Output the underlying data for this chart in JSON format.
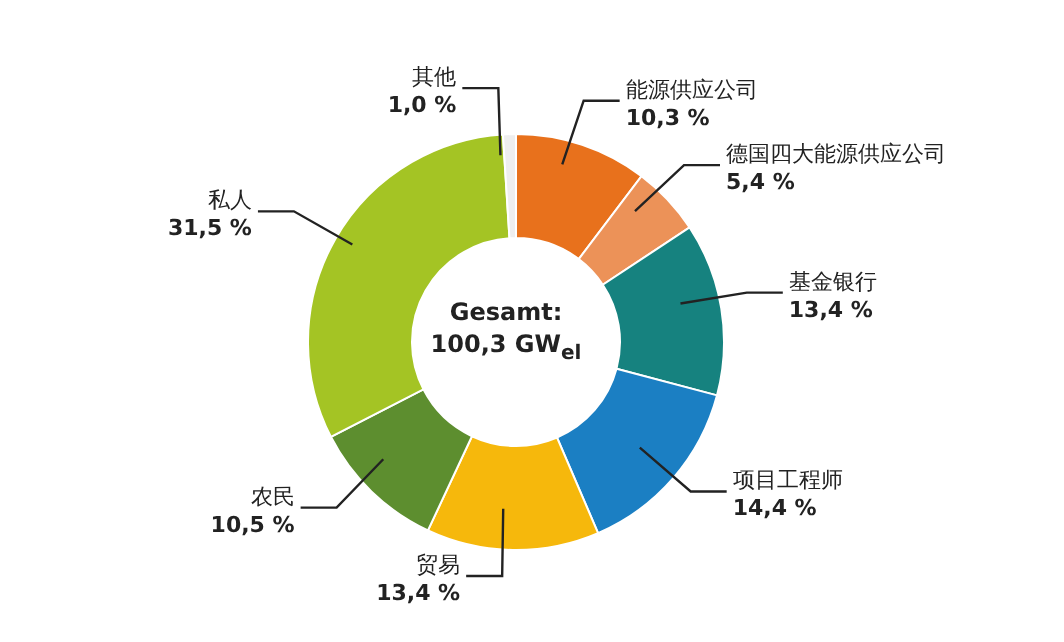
{
  "chart_data": {
    "type": "donut",
    "categories": [
      "能源供应公司",
      "德国四大能源供应公司",
      "基金银行",
      "项目工程师",
      "贸易",
      "农民",
      "私人",
      "其他"
    ],
    "values": [
      10.3,
      5.4,
      13.4,
      14.4,
      13.4,
      10.5,
      31.5,
      1.0
    ],
    "value_labels": [
      "10,3 %",
      "5,4 %",
      "13,4 %",
      "14,4 %",
      "13,4 %",
      "10,5 %",
      "31,5 %",
      "1,0 %"
    ],
    "colors": [
      "#e8711c",
      "#ec9258",
      "#16827f",
      "#1b7fc3",
      "#f6b80c",
      "#5d8e2f",
      "#a4c424",
      "#eeeeee"
    ],
    "annotations": [
      "Gesamt:",
      "100,3 GW$_{el}$"
    ],
    "legend": false
  }
}
